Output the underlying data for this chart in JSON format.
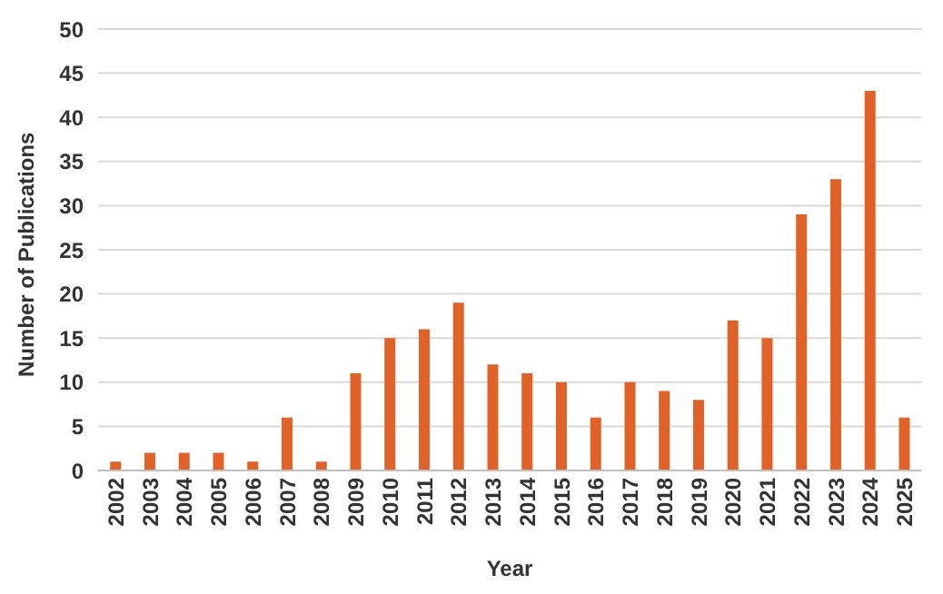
{
  "chart_data": {
    "type": "bar",
    "xlabel": "Year",
    "ylabel": "Number of Publications",
    "categories": [
      "2002",
      "2003",
      "2004",
      "2005",
      "2006",
      "2007",
      "2008",
      "2009",
      "2010",
      "2011",
      "2012",
      "2013",
      "2014",
      "2015",
      "2016",
      "2017",
      "2018",
      "2019",
      "2020",
      "2021",
      "2022",
      "2023",
      "2024",
      "2025"
    ],
    "values": [
      1,
      2,
      2,
      2,
      1,
      6,
      1,
      11,
      15,
      16,
      19,
      12,
      11,
      10,
      6,
      10,
      9,
      8,
      17,
      15,
      29,
      33,
      43,
      6
    ],
    "color": "#e06228",
    "ylim": [
      0,
      50
    ],
    "yticks": [
      0,
      5,
      10,
      15,
      20,
      25,
      30,
      35,
      40,
      45,
      50
    ],
    "grid": "y"
  }
}
